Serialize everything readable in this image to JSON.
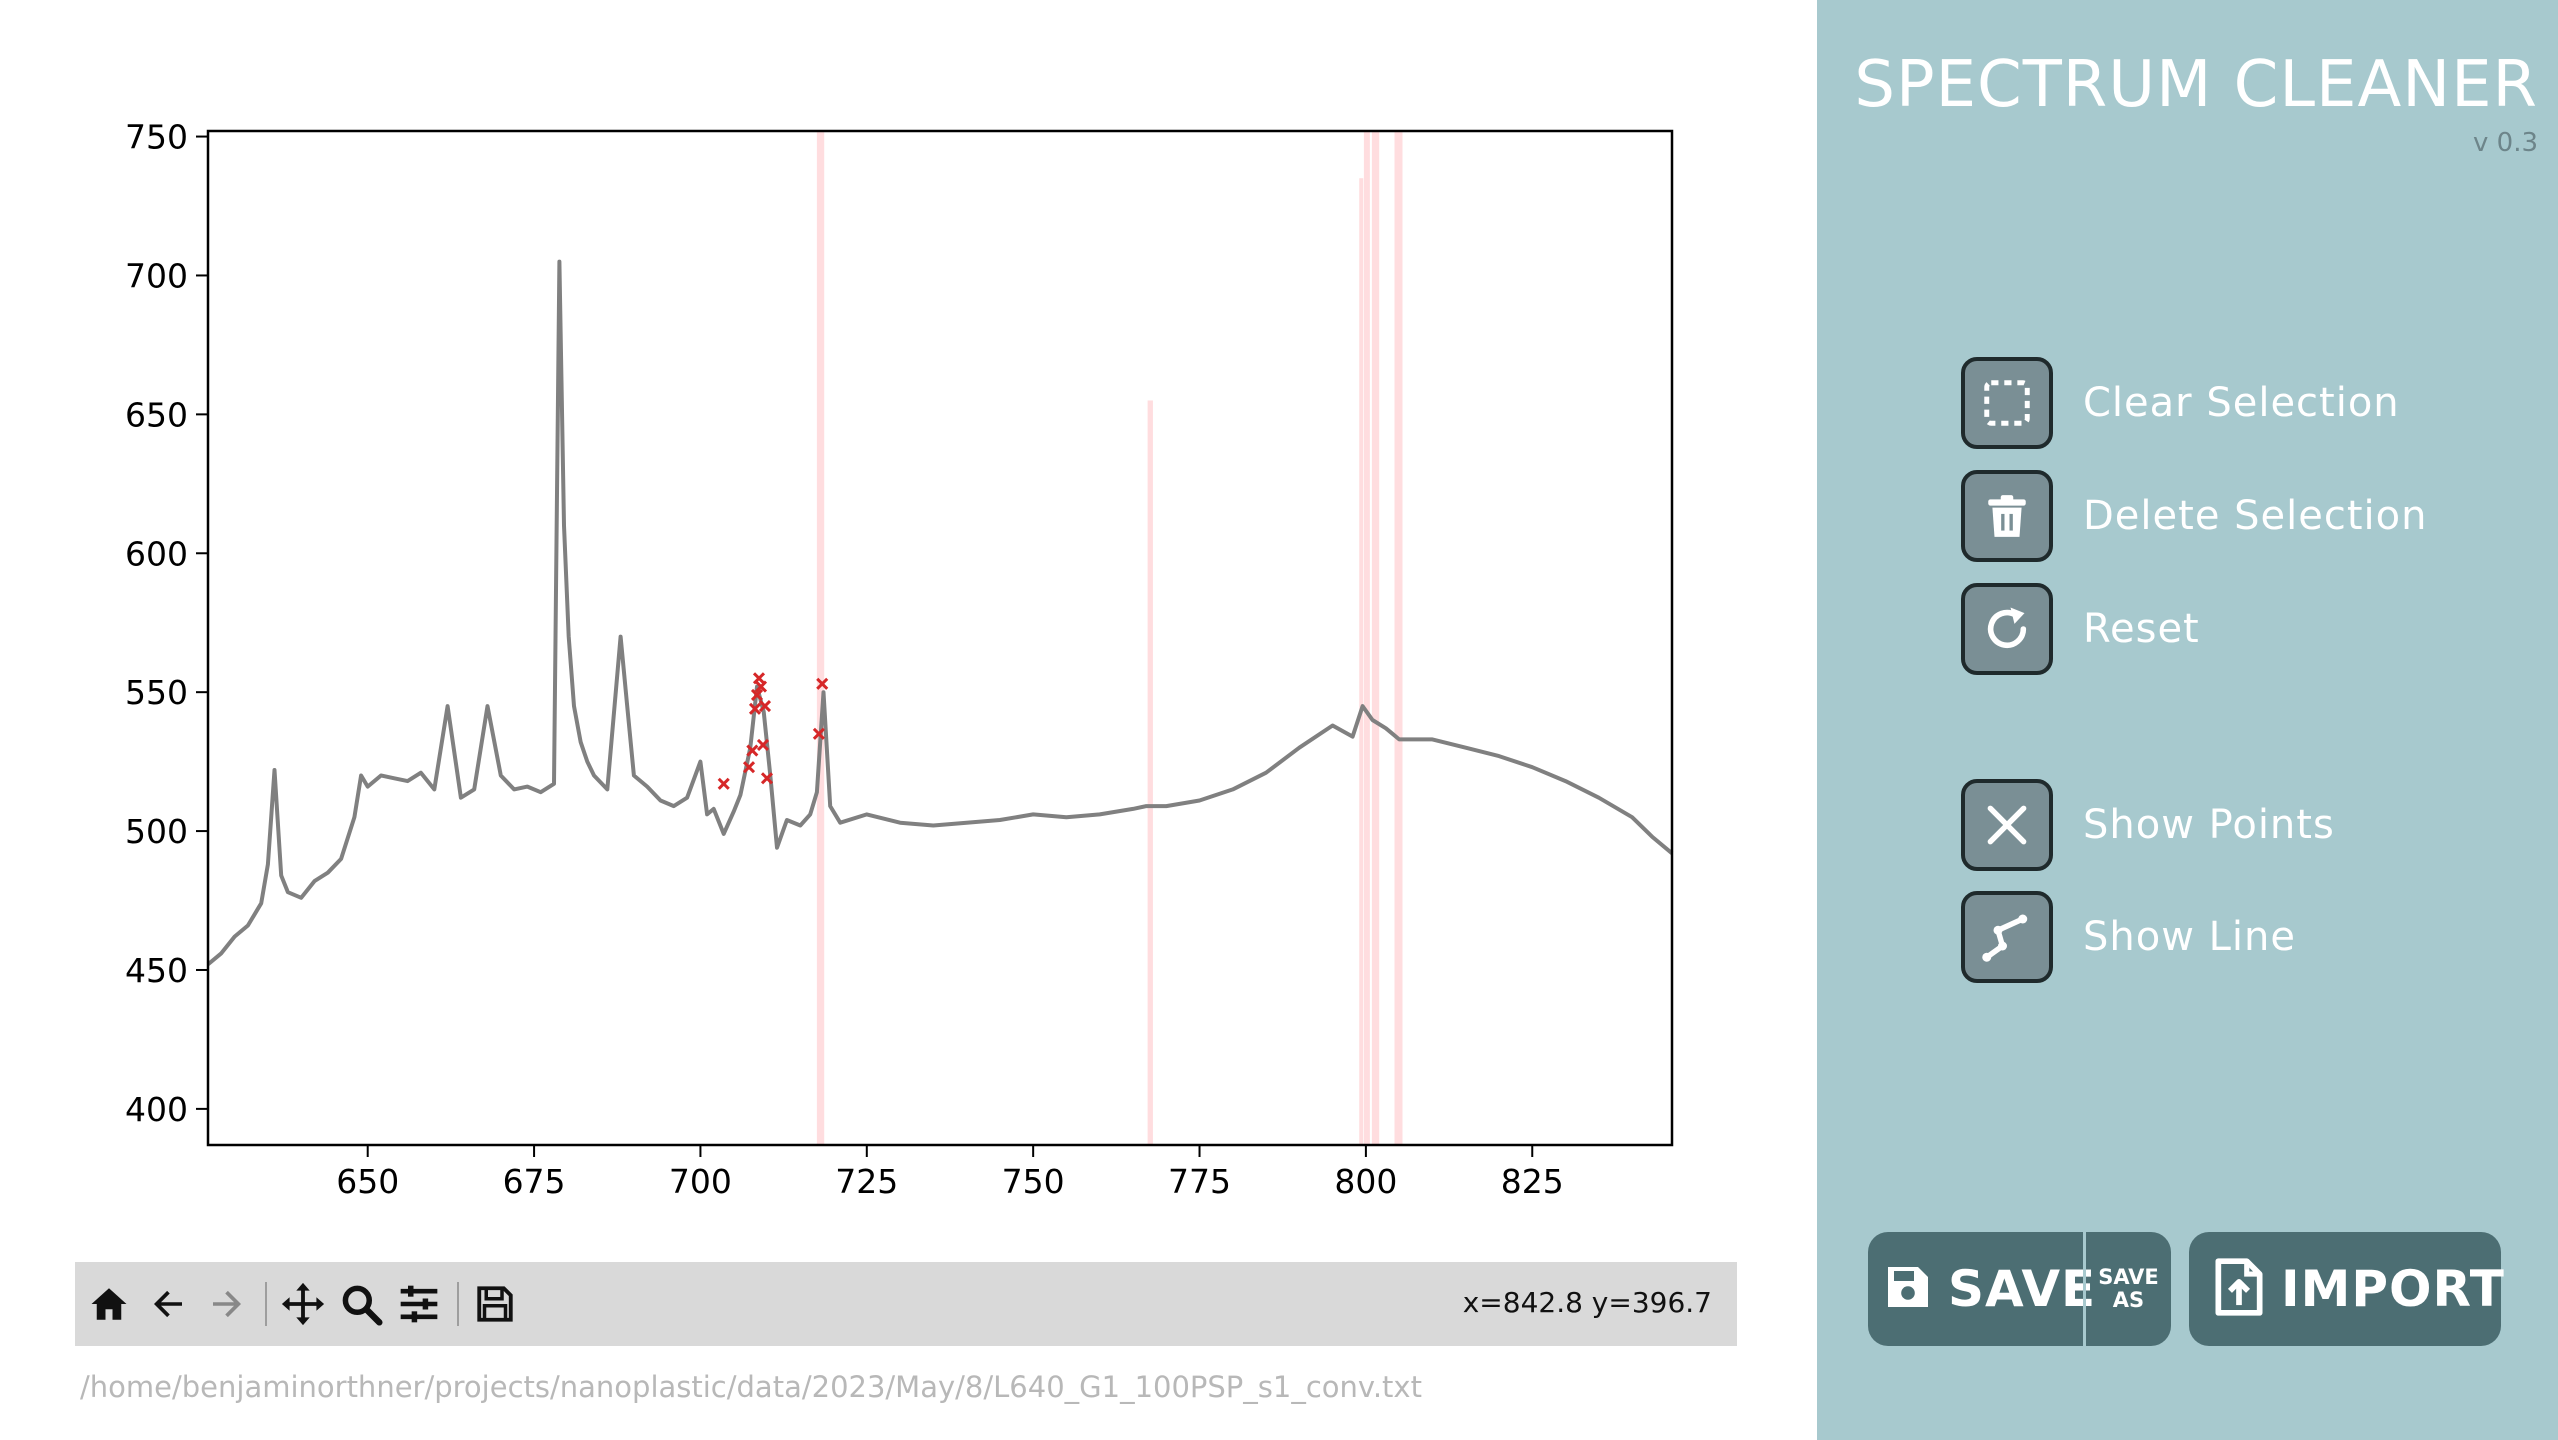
{
  "app": {
    "title": "SPECTRUM CLEANER",
    "version": "v 0.3"
  },
  "actions": [
    {
      "icon": "dashed-square-icon",
      "label": "Clear Selection"
    },
    {
      "icon": "trash-icon",
      "label": "Delete Selection"
    },
    {
      "icon": "refresh-icon",
      "label": "Reset"
    },
    {
      "icon": "x-mark-icon",
      "label": "Show Points"
    },
    {
      "icon": "line-graph-icon",
      "label": "Show Line"
    }
  ],
  "buttons": {
    "save": "SAVE",
    "save_as_line1": "SAVE",
    "save_as_line2": "AS",
    "import": "IMPORT"
  },
  "toolbar": {
    "icons": [
      "home-icon",
      "back-arrow-icon",
      "forward-arrow-icon",
      "pan-icon",
      "zoom-icon",
      "configure-subplots-icon",
      "save-figure-icon"
    ],
    "coords": "x=842.8 y=396.7"
  },
  "file_path": "/home/benjaminorthner/projects/nanoplastic/data/2023/May/8/L640_G1_100PSP_s1_conv.txt",
  "colors": {
    "panel": "#a7c9ce",
    "button": "#4c6e73",
    "icon_tile": "#7a8f95",
    "spectrum_line": "#808080",
    "selected_points": "#d62728",
    "highlight_band": "#ffd9dc"
  },
  "chart_data": {
    "type": "line",
    "title": "",
    "xlabel": "",
    "ylabel": "",
    "xlim": [
      626,
      846
    ],
    "ylim": [
      387,
      752
    ],
    "xticks": [
      650,
      675,
      700,
      725,
      750,
      775,
      800,
      825
    ],
    "yticks": [
      400,
      450,
      500,
      550,
      600,
      650,
      700,
      750
    ],
    "grid": false,
    "legend": "none",
    "series": [
      {
        "x": [
          626,
          628,
          630,
          632,
          634,
          635,
          636,
          637,
          638,
          640,
          642,
          644,
          646,
          648,
          649,
          650,
          652,
          654,
          656,
          658,
          660,
          662,
          664,
          666,
          668,
          670,
          672,
          674,
          676,
          678,
          678.8,
          679.5,
          680.2,
          681,
          682,
          683,
          684,
          686,
          688,
          689,
          690,
          692,
          694,
          696,
          698,
          700,
          701,
          702,
          703.5,
          705,
          706,
          707.5,
          708.5,
          709.5,
          710.5,
          711.5,
          713,
          715,
          716.5,
          717.5,
          718.5,
          719.5,
          721,
          725,
          730,
          735,
          740,
          745,
          750,
          755,
          760,
          765,
          767,
          770,
          775,
          780,
          785,
          790,
          795,
          798,
          799.5,
          801,
          803,
          805,
          810,
          815,
          820,
          825,
          830,
          835,
          840,
          843,
          846
        ],
        "y": [
          452,
          456,
          462,
          466,
          474,
          488,
          522,
          484,
          478,
          476,
          482,
          485,
          490,
          505,
          520,
          516,
          520,
          519,
          518,
          521,
          515,
          545,
          512,
          515,
          545,
          520,
          515,
          516,
          514,
          517,
          705,
          610,
          570,
          545,
          532,
          525,
          520,
          515,
          570,
          545,
          520,
          516,
          511,
          509,
          512,
          525,
          506,
          508,
          499,
          507,
          513,
          530,
          552,
          543,
          520,
          494,
          504,
          502,
          506,
          514,
          550,
          509,
          503,
          506,
          503,
          502,
          503,
          504,
          506,
          505,
          506,
          508,
          509,
          509,
          511,
          515,
          521,
          530,
          538,
          534,
          545,
          540,
          537,
          533,
          533,
          530,
          527,
          523,
          518,
          512,
          505,
          498,
          492
        ]
      }
    ],
    "selected_points": [
      {
        "x": 703.5,
        "y": 517
      },
      {
        "x": 707.3,
        "y": 523
      },
      {
        "x": 707.8,
        "y": 529
      },
      {
        "x": 708.2,
        "y": 544
      },
      {
        "x": 708.5,
        "y": 549
      },
      {
        "x": 708.8,
        "y": 555
      },
      {
        "x": 709.1,
        "y": 552
      },
      {
        "x": 709.4,
        "y": 531
      },
      {
        "x": 709.7,
        "y": 545
      },
      {
        "x": 710.0,
        "y": 519
      },
      {
        "x": 717.8,
        "y": 535
      },
      {
        "x": 718.3,
        "y": 553
      }
    ],
    "highlight_bands": [
      {
        "x0": 717.5,
        "x1": 718.6,
        "ytop": 752
      },
      {
        "x0": 767.2,
        "x1": 768.0,
        "ytop": 655
      },
      {
        "x0": 799.0,
        "x1": 799.6,
        "ytop": 735
      },
      {
        "x0": 799.7,
        "x1": 800.6,
        "ytop": 752
      },
      {
        "x0": 800.9,
        "x1": 802.0,
        "ytop": 752
      },
      {
        "x0": 804.3,
        "x1": 805.5,
        "ytop": 752
      }
    ]
  }
}
